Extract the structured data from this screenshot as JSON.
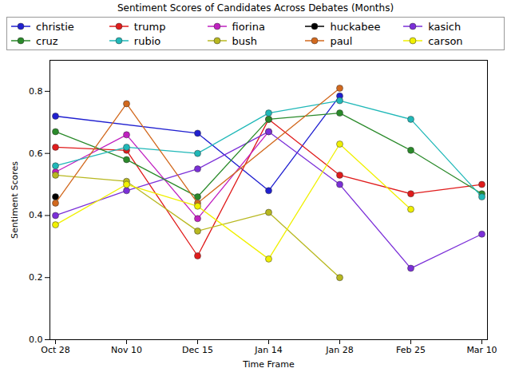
{
  "chart_data": {
    "type": "line",
    "title": "Sentiment Scores of Candidates Across Debates (Months)",
    "x_label": "Time Frame",
    "y_label": "Sentiment Scores",
    "categories": [
      "Oct 28",
      "Nov 10",
      "Dec 15",
      "Jan 14",
      "Jan 28",
      "Feb 25",
      "Mar 10"
    ],
    "ylim": [
      0,
      0.9
    ],
    "yticks": [
      {
        "value": 0,
        "label": "0.0"
      },
      0.2,
      0.4,
      0.6,
      0.8
    ],
    "grid": false,
    "marker": "o",
    "legend": "top",
    "series": [
      {
        "name": "christie",
        "color": "#1f1fd0",
        "values": [
          0.72,
          null,
          0.665,
          0.48,
          0.785,
          null,
          null
        ]
      },
      {
        "name": "trump",
        "color": "#e01b1b",
        "values": [
          0.62,
          0.61,
          0.27,
          0.71,
          0.53,
          0.47,
          0.5
        ]
      },
      {
        "name": "fiorina",
        "color": "#c020c0",
        "values": [
          0.54,
          0.66,
          0.39,
          0.67,
          null,
          null,
          null
        ]
      },
      {
        "name": "huckabee",
        "color": "#000000",
        "values": [
          0.46,
          null,
          null,
          null,
          null,
          null,
          null
        ]
      },
      {
        "name": "kasich",
        "color": "#7b2fd8",
        "values": [
          0.4,
          0.48,
          0.55,
          0.67,
          0.5,
          0.23,
          0.34
        ]
      },
      {
        "name": "cruz",
        "color": "#2a8a2a",
        "values": [
          0.67,
          0.58,
          0.46,
          0.71,
          0.73,
          0.61,
          0.47
        ]
      },
      {
        "name": "rubio",
        "color": "#20b8b8",
        "values": [
          0.56,
          0.62,
          0.6,
          0.73,
          0.77,
          0.71,
          0.46
        ]
      },
      {
        "name": "bush",
        "color": "#b8b820",
        "values": [
          0.53,
          0.51,
          0.35,
          0.41,
          0.2,
          null,
          null
        ]
      },
      {
        "name": "paul",
        "color": "#d2691e",
        "values": [
          0.44,
          0.76,
          0.44,
          null,
          0.81,
          null,
          null
        ]
      },
      {
        "name": "carson",
        "color": "#f0f000",
        "values": [
          0.37,
          0.5,
          0.43,
          0.26,
          0.63,
          0.42,
          null
        ]
      }
    ]
  }
}
